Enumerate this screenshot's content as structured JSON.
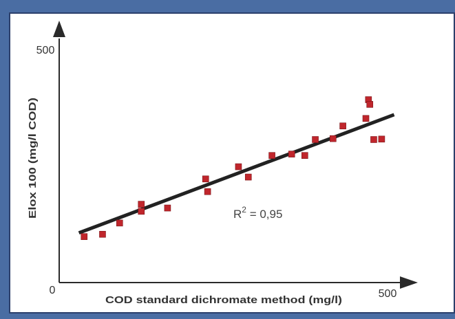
{
  "chart_data": {
    "type": "scatter",
    "title": "",
    "xlabel": "COD standard dichromate method (mg/l)",
    "ylabel": "Elox 100 (mg/l COD)",
    "xlim": [
      0,
      500
    ],
    "ylim": [
      0,
      500
    ],
    "x_ticks": [
      "0",
      "500"
    ],
    "y_ticks": [
      "500"
    ],
    "grid": false,
    "marker_color": "#c0262c",
    "line_color": "#222222",
    "points": [
      {
        "x": 38,
        "y": 98
      },
      {
        "x": 66,
        "y": 103
      },
      {
        "x": 92,
        "y": 127
      },
      {
        "x": 125,
        "y": 167
      },
      {
        "x": 125,
        "y": 152
      },
      {
        "x": 165,
        "y": 159
      },
      {
        "x": 223,
        "y": 221
      },
      {
        "x": 226,
        "y": 194
      },
      {
        "x": 273,
        "y": 247
      },
      {
        "x": 288,
        "y": 225
      },
      {
        "x": 324,
        "y": 271
      },
      {
        "x": 354,
        "y": 274
      },
      {
        "x": 374,
        "y": 271
      },
      {
        "x": 390,
        "y": 305
      },
      {
        "x": 417,
        "y": 307
      },
      {
        "x": 432,
        "y": 334
      },
      {
        "x": 467,
        "y": 350
      },
      {
        "x": 471,
        "y": 390
      },
      {
        "x": 473,
        "y": 380
      },
      {
        "x": 479,
        "y": 305
      },
      {
        "x": 491,
        "y": 306
      }
    ],
    "trendline": {
      "x": [
        30,
        510
      ],
      "y": [
        106,
        358
      ]
    },
    "annotation": {
      "prefix": "R",
      "sup": "2",
      "text": " = 0,95"
    }
  }
}
